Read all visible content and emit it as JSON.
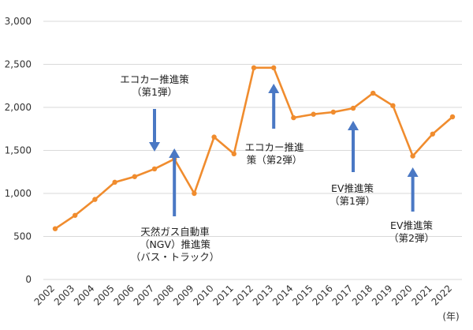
{
  "chart_data": {
    "type": "line",
    "title": "",
    "xlabel": "",
    "ylabel": "",
    "x_unit_label": "(年)",
    "x": [
      "2002",
      "2003",
      "2004",
      "2005",
      "2006",
      "2007",
      "2008",
      "2009",
      "2010",
      "2011",
      "2012",
      "2013",
      "2014",
      "2015",
      "2016",
      "2017",
      "2018",
      "2019",
      "2020",
      "2021",
      "2022"
    ],
    "series": [
      {
        "values": [
          590,
          745,
          930,
          1130,
          1195,
          1285,
          1400,
          1000,
          1655,
          1460,
          2460,
          2460,
          1880,
          1920,
          1945,
          1990,
          2165,
          2020,
          1435,
          1690,
          1890
        ]
      }
    ],
    "ylim": [
      0,
      3000
    ],
    "yticks": [
      {
        "value": 0,
        "label": "0"
      },
      {
        "value": 500,
        "label": "500"
      },
      {
        "value": 1000,
        "label": "1,000"
      },
      {
        "value": 1500,
        "label": "1,500"
      },
      {
        "value": 2000,
        "label": "2,000"
      },
      {
        "value": 2500,
        "label": "2,500"
      },
      {
        "value": 3000,
        "label": "3,000"
      }
    ],
    "grid": true,
    "colors": {
      "line": "#f08c2e",
      "arrow": "#4a78c4",
      "grid": "#d9d9d9"
    },
    "annotations": [
      {
        "id": "ecocar1",
        "lines": [
          "エコカー推進策",
          "（第1弾）"
        ],
        "arrow_year": "2007",
        "direction": "down"
      },
      {
        "id": "ngv",
        "lines": [
          "天然ガス自動車",
          "（NGV）推進策",
          "（バス・トラック）"
        ],
        "arrow_year": "2008",
        "direction": "up"
      },
      {
        "id": "ecocar2",
        "lines": [
          "エコカー推進",
          "策（第2弾）"
        ],
        "arrow_year": "2013",
        "direction": "up"
      },
      {
        "id": "ev1",
        "lines": [
          "EV推進策",
          "（第1弾）"
        ],
        "arrow_year": "2017",
        "direction": "up"
      },
      {
        "id": "ev2",
        "lines": [
          "EV推進策",
          "（第2弾）"
        ],
        "arrow_year": "2020",
        "direction": "up"
      }
    ]
  }
}
